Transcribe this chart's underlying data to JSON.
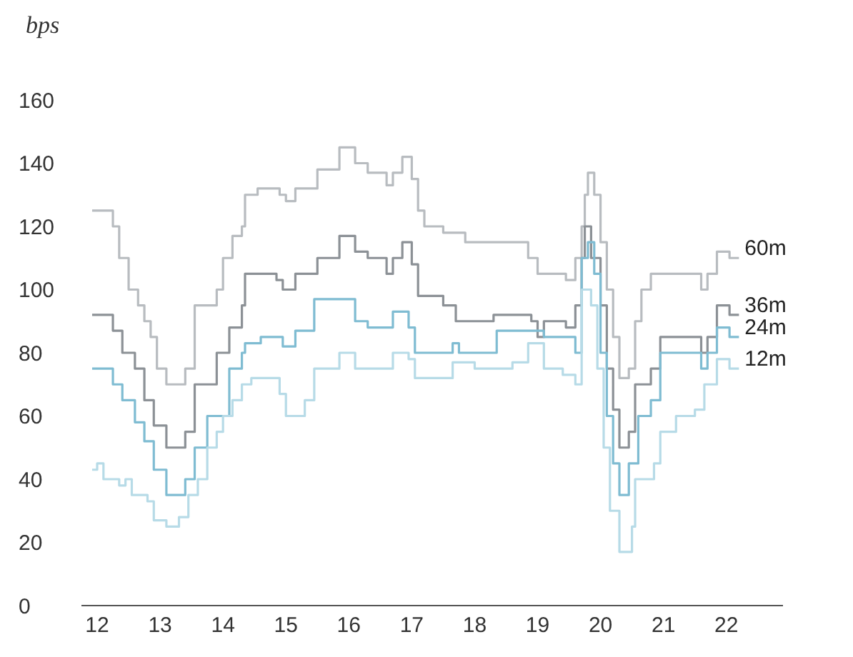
{
  "chart_data": {
    "type": "step",
    "ylabel": "bps",
    "xlim": [
      11.75,
      22.9
    ],
    "xticks": [
      12,
      13,
      14,
      15,
      16,
      17,
      18,
      19,
      20,
      21,
      22
    ],
    "ylim": [
      0,
      160
    ],
    "yticks": [
      0,
      20,
      40,
      60,
      80,
      100,
      120,
      140,
      160
    ],
    "grid": false,
    "legend": false,
    "series": [
      {
        "name": "60m",
        "color": "#b8bcc0",
        "x": [
          11.92,
          12.2,
          12.25,
          12.35,
          12.5,
          12.65,
          12.75,
          12.85,
          12.95,
          13.1,
          13.4,
          13.55,
          13.9,
          14.0,
          14.15,
          14.3,
          14.35,
          14.55,
          14.9,
          15.0,
          15.15,
          15.5,
          15.85,
          16.1,
          16.3,
          16.6,
          16.7,
          16.85,
          17.0,
          17.1,
          17.2,
          17.5,
          17.85,
          18.7,
          18.85,
          19.0,
          19.45,
          19.6,
          19.7,
          19.75,
          19.8,
          19.9,
          20.0,
          20.1,
          20.2,
          20.3,
          20.45,
          20.55,
          20.65,
          20.8,
          21.6,
          21.7,
          21.85,
          22.05,
          22.2
        ],
        "values": [
          125,
          125,
          120,
          110,
          100,
          95,
          90,
          85,
          75,
          70,
          75,
          95,
          100,
          110,
          117,
          120,
          130,
          132,
          130,
          128,
          132,
          138,
          145,
          140,
          137,
          133,
          137,
          142,
          135,
          125,
          120,
          118,
          115,
          115,
          110,
          105,
          103,
          110,
          120,
          130,
          137,
          130,
          115,
          100,
          85,
          72,
          75,
          90,
          100,
          105,
          100,
          105,
          112,
          110,
          110
        ]
      },
      {
        "name": "36m",
        "color": "#8c9196",
        "x": [
          11.92,
          12.25,
          12.4,
          12.6,
          12.75,
          12.9,
          13.1,
          13.4,
          13.55,
          13.9,
          14.1,
          14.3,
          14.35,
          14.85,
          14.95,
          15.15,
          15.5,
          15.85,
          16.1,
          16.3,
          16.6,
          16.7,
          16.85,
          17.0,
          17.1,
          17.5,
          17.7,
          18.3,
          18.9,
          19.0,
          19.1,
          19.45,
          19.6,
          19.7,
          19.75,
          19.85,
          20.0,
          20.1,
          20.2,
          20.3,
          20.45,
          20.55,
          20.8,
          20.95,
          21.6,
          21.7,
          21.85,
          22.05,
          22.2
        ],
        "values": [
          92,
          87,
          80,
          75,
          65,
          57,
          50,
          55,
          70,
          80,
          88,
          95,
          105,
          103,
          100,
          105,
          110,
          117,
          112,
          110,
          105,
          110,
          115,
          108,
          98,
          95,
          90,
          92,
          90,
          85,
          90,
          88,
          95,
          110,
          120,
          110,
          95,
          75,
          62,
          50,
          55,
          70,
          75,
          85,
          80,
          85,
          95,
          92,
          92
        ]
      },
      {
        "name": "24m",
        "color": "#7fbcd2",
        "x": [
          11.92,
          12.25,
          12.4,
          12.6,
          12.75,
          12.9,
          13.1,
          13.4,
          13.55,
          13.75,
          14.1,
          14.3,
          14.35,
          14.6,
          14.95,
          15.15,
          15.45,
          15.85,
          16.1,
          16.3,
          16.7,
          16.95,
          17.05,
          17.5,
          17.65,
          17.75,
          18.3,
          18.35,
          19.1,
          19.6,
          19.7,
          19.8,
          19.9,
          20.0,
          20.1,
          20.2,
          20.3,
          20.45,
          20.6,
          20.8,
          20.95,
          21.6,
          21.7,
          21.85,
          22.05,
          22.2
        ],
        "values": [
          75,
          70,
          65,
          58,
          52,
          43,
          35,
          40,
          50,
          60,
          75,
          80,
          83,
          85,
          82,
          87,
          97,
          97,
          90,
          88,
          93,
          88,
          80,
          80,
          83,
          80,
          80,
          87,
          85,
          80,
          110,
          115,
          105,
          80,
          60,
          45,
          35,
          45,
          60,
          65,
          80,
          75,
          80,
          88,
          85,
          85
        ]
      },
      {
        "name": "12m",
        "color": "#b7dbe7",
        "x": [
          11.92,
          12.0,
          12.1,
          12.35,
          12.45,
          12.55,
          12.8,
          12.9,
          13.1,
          13.3,
          13.45,
          13.6,
          13.75,
          13.9,
          14.0,
          14.15,
          14.3,
          14.45,
          14.9,
          15.0,
          15.3,
          15.45,
          15.85,
          16.1,
          16.7,
          16.95,
          17.05,
          17.6,
          17.65,
          18.0,
          18.6,
          18.85,
          19.1,
          19.4,
          19.6,
          19.7,
          19.85,
          19.95,
          20.05,
          20.15,
          20.3,
          20.5,
          20.55,
          20.85,
          20.95,
          21.2,
          21.5,
          21.65,
          21.85,
          22.05,
          22.2
        ],
        "values": [
          43,
          45,
          40,
          38,
          40,
          35,
          33,
          27,
          25,
          28,
          35,
          40,
          50,
          55,
          60,
          65,
          70,
          72,
          67,
          60,
          65,
          75,
          80,
          75,
          80,
          78,
          72,
          72,
          77,
          75,
          77,
          83,
          75,
          73,
          70,
          100,
          95,
          75,
          50,
          30,
          17,
          25,
          40,
          45,
          55,
          60,
          62,
          70,
          78,
          75,
          75
        ]
      }
    ]
  }
}
